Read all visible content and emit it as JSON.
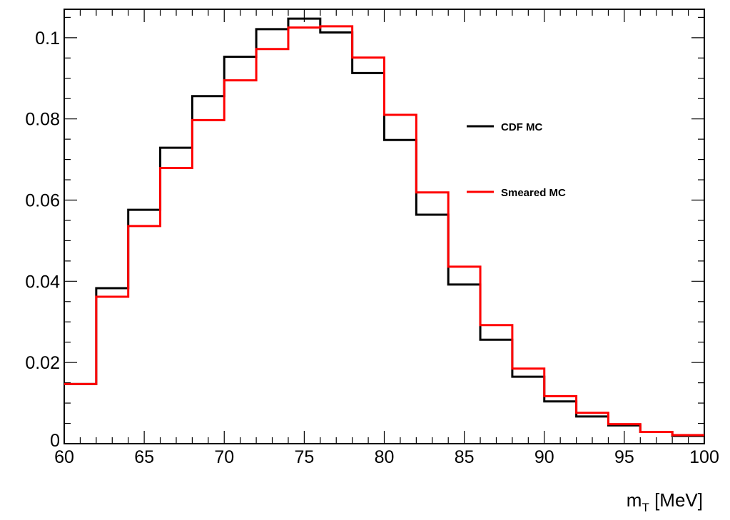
{
  "chart_data": {
    "type": "line",
    "style": "step-histogram",
    "xlabel": "m",
    "xlabel_subscript": "T",
    "xlabel_unit": "[MeV]",
    "ylabel": "",
    "xlim": [
      60,
      100
    ],
    "ylim": [
      0,
      0.107
    ],
    "x_ticks": [
      "60",
      "65",
      "70",
      "75",
      "80",
      "85",
      "90",
      "95",
      "100"
    ],
    "y_ticks": [
      "0",
      "0.02",
      "0.04",
      "0.06",
      "0.08",
      "0.1"
    ],
    "bin_edges": [
      60,
      62,
      64,
      66,
      68,
      70,
      72,
      74,
      76,
      78,
      80,
      82,
      84,
      86,
      88,
      90,
      92,
      94,
      96,
      98,
      100
    ],
    "grid": false,
    "legend_position": "right",
    "series": [
      {
        "name": "CDF MC",
        "color": "#000000",
        "values": [
          0.0147,
          0.0383,
          0.0576,
          0.0729,
          0.0856,
          0.0953,
          0.1021,
          0.1047,
          0.1013,
          0.0913,
          0.0748,
          0.0564,
          0.0392,
          0.0256,
          0.0165,
          0.0104,
          0.0067,
          0.0045,
          0.0029,
          0.0019
        ]
      },
      {
        "name": "Smeared MC",
        "color": "#ff0000",
        "values": [
          0.0147,
          0.0362,
          0.0536,
          0.0679,
          0.0797,
          0.0895,
          0.0972,
          0.1025,
          0.1028,
          0.0951,
          0.081,
          0.0619,
          0.0436,
          0.0292,
          0.0185,
          0.0117,
          0.0076,
          0.0048,
          0.0029,
          0.0021
        ]
      }
    ]
  }
}
